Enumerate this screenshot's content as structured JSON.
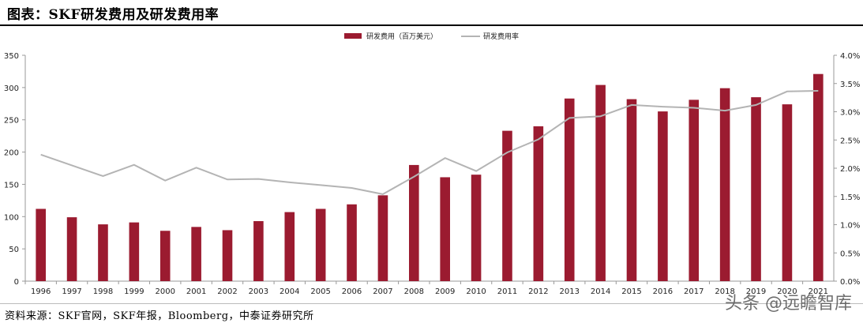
{
  "title": "图表：SKF研发费用及研发费用率",
  "source": "资料来源：SKF官网，SKF年报，Bloomberg，中泰证券研究所",
  "watermark": "头条 @远瞻智库",
  "chart_data": {
    "type": "bar",
    "categories": [
      "1996",
      "1997",
      "1998",
      "1999",
      "2000",
      "2001",
      "2002",
      "2003",
      "2004",
      "2005",
      "2006",
      "2007",
      "2008",
      "2009",
      "2010",
      "2011",
      "2012",
      "2013",
      "2014",
      "2015",
      "2016",
      "2017",
      "2018",
      "2019",
      "2020",
      "2021"
    ],
    "series": [
      {
        "name": "研发费用（百万美元）",
        "type": "bar",
        "axis": "left",
        "color": "#9b1b30",
        "values": [
          112,
          99,
          88,
          91,
          78,
          84,
          79,
          93,
          107,
          112,
          119,
          133,
          180,
          161,
          165,
          233,
          240,
          283,
          304,
          282,
          263,
          281,
          299,
          285,
          274,
          321
        ]
      },
      {
        "name": "研发费用率",
        "type": "line",
        "axis": "right",
        "color": "#b4b4b4",
        "values": [
          0.0224,
          0.0205,
          0.0186,
          0.0206,
          0.0178,
          0.0201,
          0.018,
          0.0181,
          0.0175,
          0.017,
          0.0165,
          0.0154,
          0.0185,
          0.0218,
          0.0195,
          0.0228,
          0.0251,
          0.0289,
          0.0292,
          0.0312,
          0.0309,
          0.0307,
          0.0302,
          0.0312,
          0.0336,
          0.0337
        ]
      }
    ],
    "y_left": {
      "min": 0,
      "max": 350,
      "ticks": [
        "0",
        "50",
        "100",
        "150",
        "200",
        "250",
        "300",
        "350"
      ]
    },
    "y_right": {
      "min": 0,
      "max": 0.04,
      "ticks": [
        "0.0%",
        "0.5%",
        "1.0%",
        "1.5%",
        "2.0%",
        "2.5%",
        "3.0%",
        "3.5%",
        "4.0%"
      ]
    },
    "legend_position": "top-center",
    "grid": false
  }
}
